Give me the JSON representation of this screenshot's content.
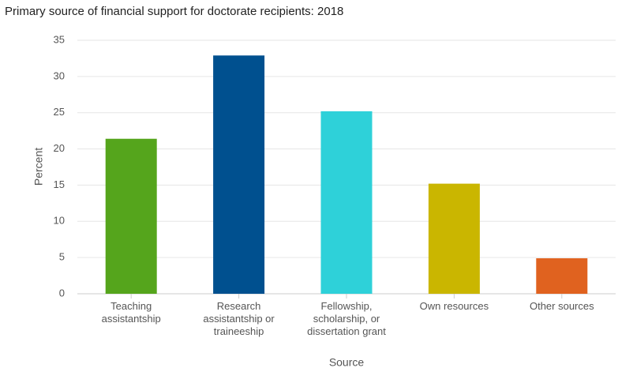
{
  "chart_data": {
    "type": "bar",
    "title": "Primary source of financial support for doctorate recipients: 2018",
    "categories": [
      "Teaching\nassistantship",
      "Research\nassistantship or\ntraineeship",
      "Fellowship,\nscholarship, or\ndissertation grant",
      "Own resources",
      "Other sources"
    ],
    "values": [
      21.4,
      32.9,
      25.2,
      15.2,
      4.9
    ],
    "colors": [
      "#55a51c",
      "#00508f",
      "#2ed1d9",
      "#cab600",
      "#e0621f"
    ],
    "xlabel": "Source",
    "ylabel": "Percent",
    "ylim": [
      0,
      35
    ],
    "yticks": [
      0,
      5,
      10,
      15,
      20,
      25,
      30,
      35
    ],
    "grid": true
  }
}
